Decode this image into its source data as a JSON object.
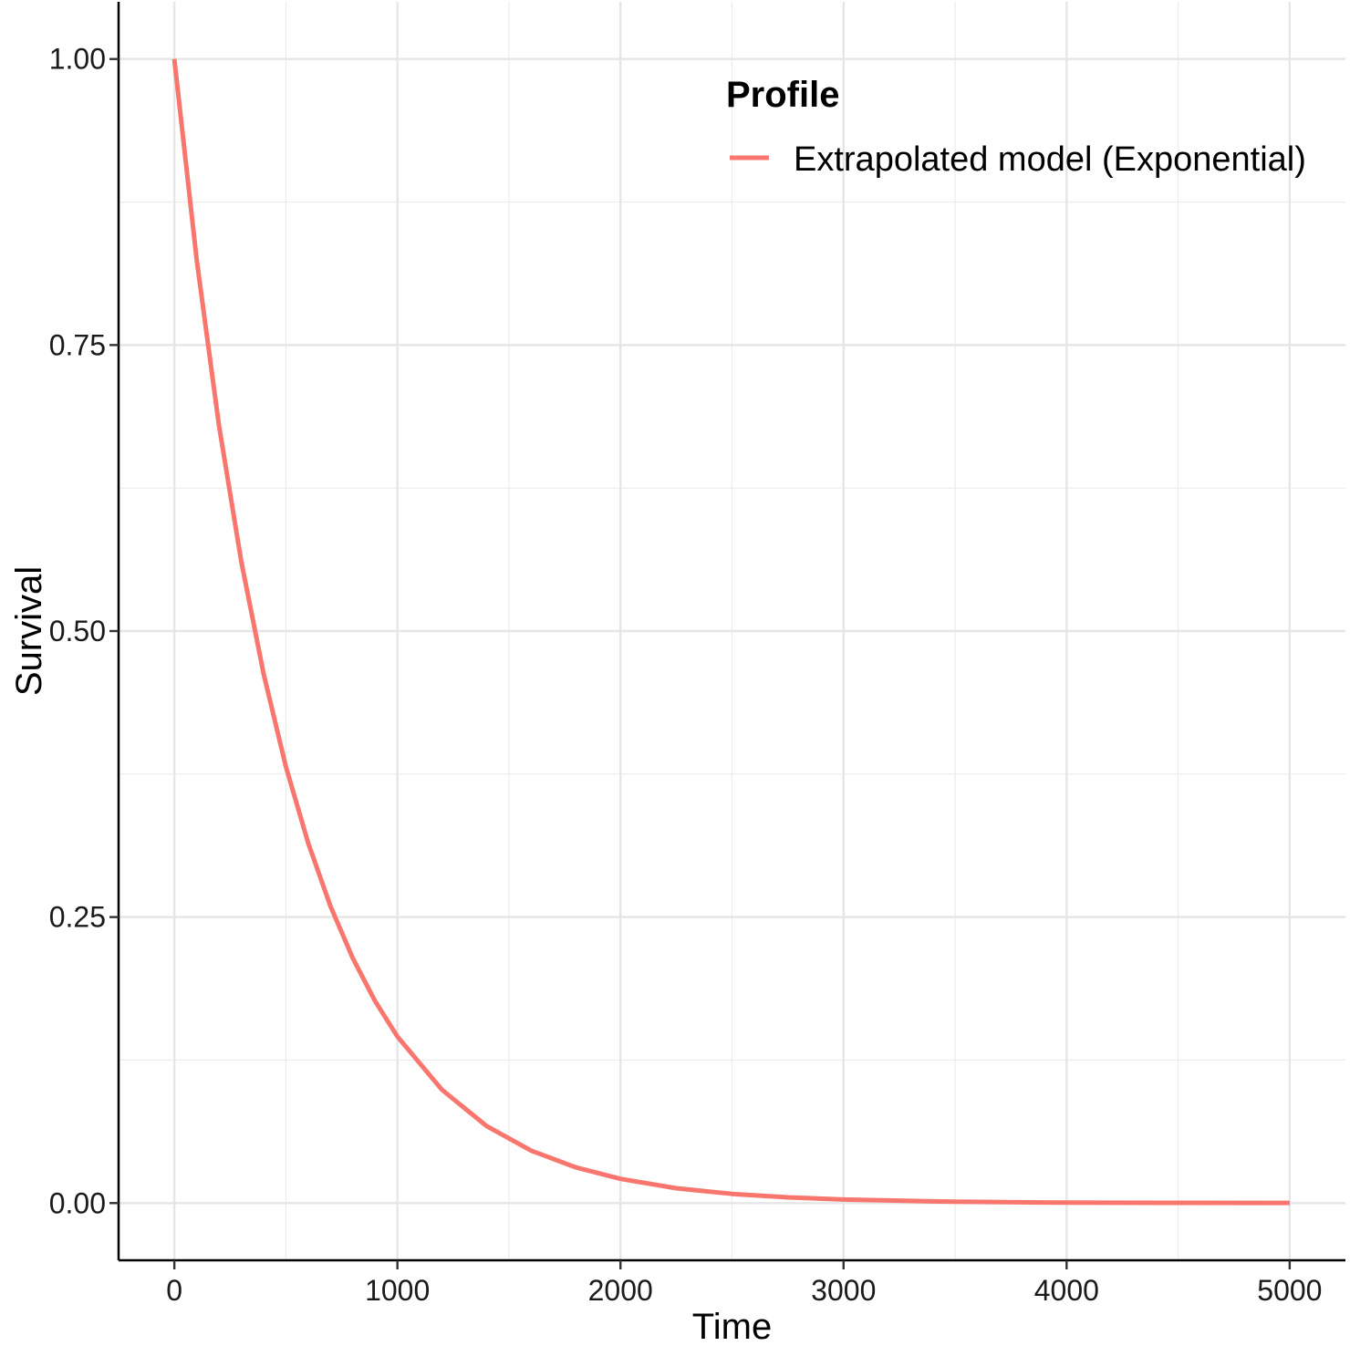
{
  "chart_data": {
    "type": "line",
    "title": "",
    "xlabel": "Time",
    "ylabel": "Survival",
    "xlim": [
      -250,
      5250
    ],
    "ylim": [
      -0.05,
      1.05
    ],
    "x_ticks": [
      0,
      1000,
      2000,
      3000,
      4000,
      5000
    ],
    "x_tick_labels": [
      "0",
      "1000",
      "2000",
      "3000",
      "4000",
      "5000"
    ],
    "y_ticks": [
      0,
      0.25,
      0.5,
      0.75,
      1
    ],
    "y_tick_labels": [
      "0.00",
      "0.25",
      "0.50",
      "0.75",
      "1.00"
    ],
    "grid": true,
    "legend": {
      "title": "Profile",
      "position": "top-right"
    },
    "series": [
      {
        "name": "Extrapolated model (Exponential)",
        "color": "#F8766D",
        "x": [
          0,
          100,
          200,
          300,
          400,
          500,
          600,
          700,
          800,
          900,
          1000,
          1200,
          1400,
          1600,
          1800,
          2000,
          2250,
          2500,
          2750,
          3000,
          3500,
          4000,
          4500,
          5000
        ],
        "y": [
          1.0,
          0.8247,
          0.6801,
          0.5609,
          0.4626,
          0.3815,
          0.3146,
          0.2594,
          0.214,
          0.1765,
          0.1455,
          0.099,
          0.0673,
          0.0458,
          0.0312,
          0.0212,
          0.013,
          0.008,
          0.005,
          0.0031,
          0.0012,
          0.0004,
          0.0002,
          0.0001
        ]
      }
    ]
  }
}
